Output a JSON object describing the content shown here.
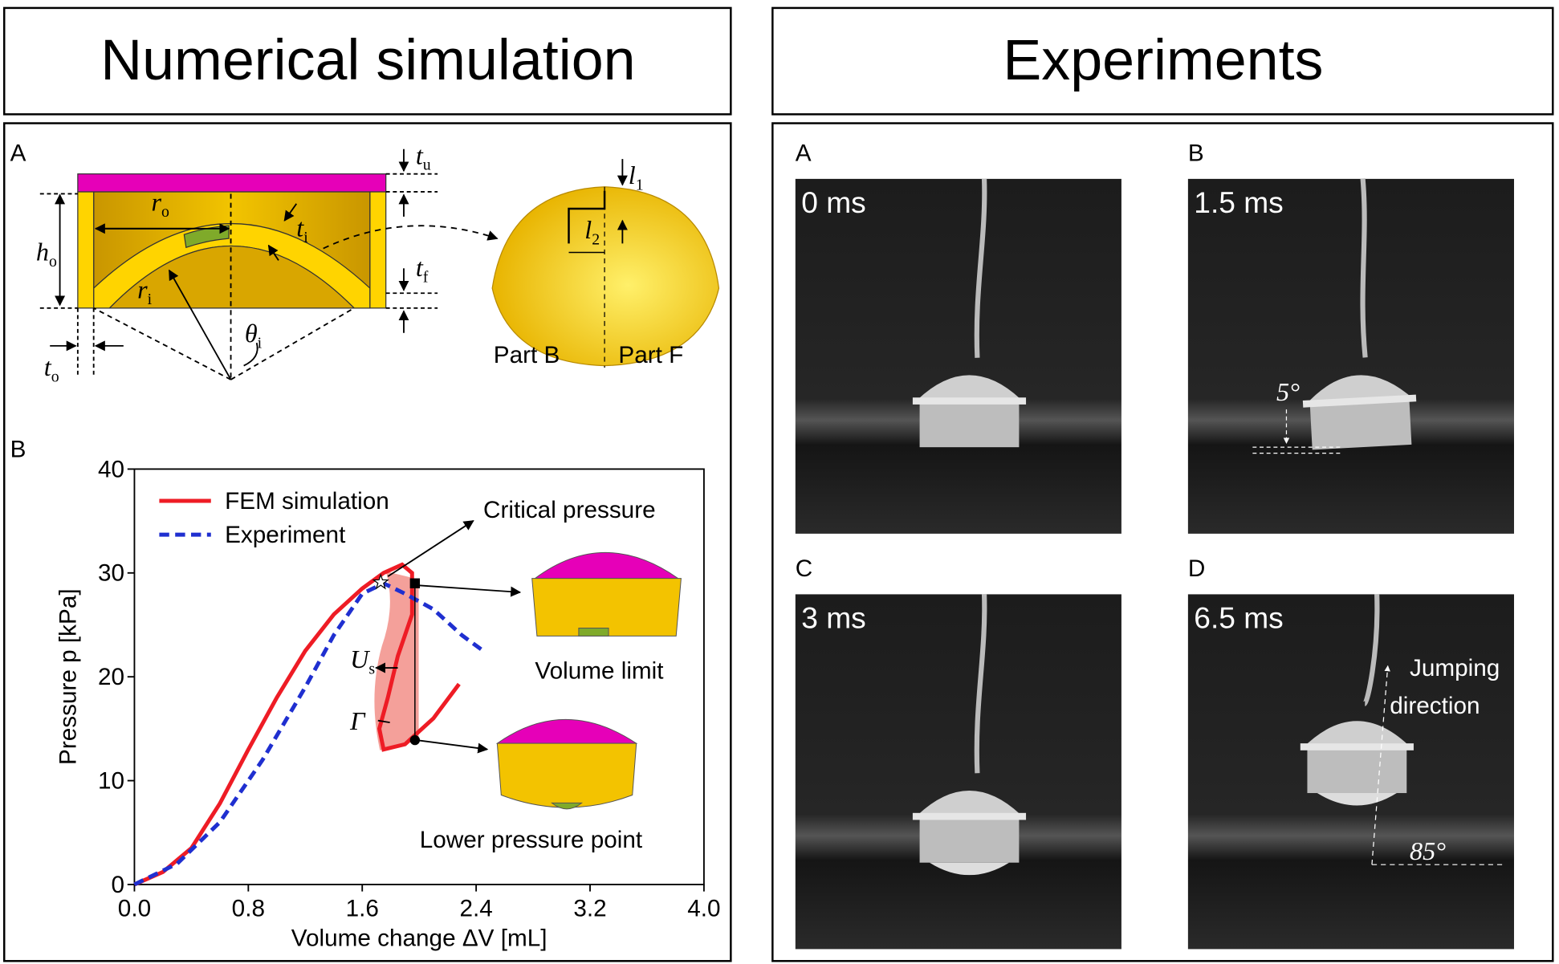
{
  "left_header": "Numerical simulation",
  "right_header": "Experiments",
  "diagram": {
    "panel_letter": "A",
    "labels": [
      {
        "sym": "t",
        "sub": "u"
      },
      {
        "sym": "r",
        "sub": "o"
      },
      {
        "sym": "t",
        "sub": "i"
      },
      {
        "sym": "h",
        "sub": "o"
      },
      {
        "sym": "t",
        "sub": "f"
      },
      {
        "sym": "r",
        "sub": "i"
      },
      {
        "sym": "θ",
        "sub": "i"
      },
      {
        "sym": "t",
        "sub": "o"
      },
      {
        "sym": "l",
        "sub": "1"
      },
      {
        "sym": "l",
        "sub": "2"
      }
    ],
    "part_b": "Part B",
    "part_f": "Part F"
  },
  "chart_data": {
    "type": "line",
    "panel_letter": "B",
    "xlabel": "Volume change ΔV [mL]",
    "ylabel": "Pressure p [kPa]",
    "xlim": [
      0,
      4
    ],
    "ylim": [
      0,
      40
    ],
    "xticks": [
      {
        "value": 0,
        "label": "0.0"
      },
      0.8,
      1.6,
      2.4,
      3.2,
      {
        "value": 4,
        "label": "4.0"
      }
    ],
    "yticks": [
      0,
      10,
      20,
      30,
      40
    ],
    "legend": "upper left",
    "series": [
      {
        "name": "FEM simulation",
        "color": "#ee1c25",
        "style": "solid",
        "x": [
          0,
          0.2,
          0.4,
          0.6,
          0.8,
          1.0,
          1.2,
          1.4,
          1.6,
          1.75,
          1.88,
          1.95,
          1.95,
          1.85,
          1.78,
          1.72,
          1.75,
          1.9,
          2.1,
          2.28
        ],
        "values": [
          0,
          1.2,
          3.5,
          7.8,
          13,
          18,
          22.5,
          26,
          28.5,
          30,
          30.8,
          30,
          26,
          22,
          18,
          15,
          13,
          13.5,
          16,
          19.3
        ]
      },
      {
        "name": "Experiment",
        "color": "#1f2fd0",
        "style": "dashed",
        "x": [
          0,
          0.3,
          0.6,
          0.9,
          1.2,
          1.4,
          1.6,
          1.75,
          1.9,
          2.1,
          2.3,
          2.45
        ],
        "values": [
          0,
          2,
          6,
          12,
          19,
          24,
          28,
          29,
          28,
          26.5,
          24,
          22.5
        ]
      }
    ],
    "points": [
      {
        "x": 1.73,
        "y": 29.1,
        "shape": "star"
      },
      {
        "x": 1.97,
        "y": 29,
        "shape": "square"
      },
      {
        "x": 1.97,
        "y": 13.9,
        "shape": "circle"
      }
    ],
    "annotations": [
      "Critical pressure",
      "Volume limit",
      "Lower pressure point"
    ],
    "energy_labels": [
      {
        "sym": "U",
        "sub": "s"
      },
      {
        "sym": "Γ",
        "sub": null
      }
    ]
  },
  "photos": [
    {
      "letter": "A",
      "time": "0 ms"
    },
    {
      "letter": "B",
      "time": "1.5 ms"
    },
    {
      "letter": "C",
      "time": "3 ms"
    },
    {
      "letter": "D",
      "time": "6.5 ms"
    }
  ],
  "photo_annotations": {
    "tilt": "5°",
    "jump_line1": "Jumping",
    "jump_line2": "direction",
    "angle": "85°"
  }
}
